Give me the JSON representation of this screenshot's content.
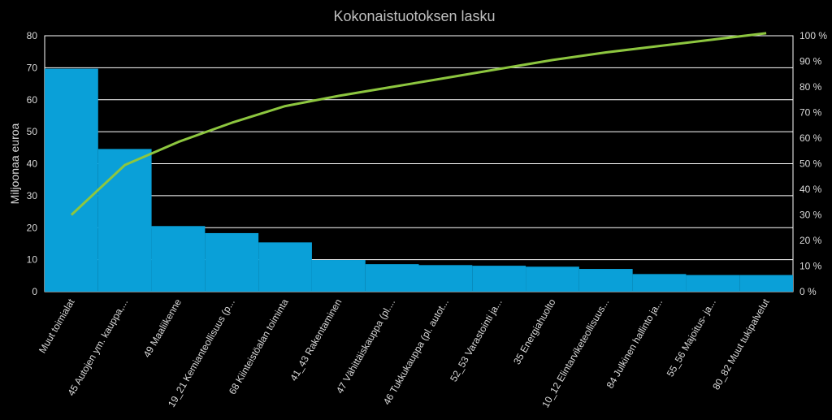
{
  "chart_data": {
    "type": "bar",
    "title": "Kokonaistuotoksen lasku",
    "ylabel": "Miljoonaa euroa",
    "ylim": [
      0,
      80
    ],
    "yticks": [
      "0",
      "10",
      "20",
      "30",
      "40",
      "50",
      "60",
      "70",
      "80"
    ],
    "y2lim": [
      0,
      100
    ],
    "y2ticks": [
      "0 %",
      "10 %",
      "20 %",
      "30 %",
      "40 %",
      "50 %",
      "60 %",
      "70 %",
      "80 %",
      "90 %",
      "100 %"
    ],
    "grid": true,
    "categories": [
      "Muut toimialat",
      "45 Autojen ym. kauppa,...",
      "49 Maaliikenne",
      "19_21 Kemianteollisuus (p...",
      "68 Kiinteistöalan toiminta",
      "41_43 Rakentaminen",
      "47 Vähittäiskauppa (pl....",
      "46 Tukkukauppa (pl. autot...",
      "52_53 Varastointi ja...",
      "35 Energiahuolto",
      "10_12 Elintarviketeollisuus...",
      "84 Julkinen hallinto ja...",
      "55_56 Majoitus- ja...",
      "80_82 Muut tukipalvelut"
    ],
    "series": [
      {
        "axis": "left",
        "kind": "bar",
        "color": "#0aa0d8",
        "values": [
          69.7,
          44.6,
          20.5,
          18.3,
          15.4,
          9.9,
          8.6,
          8.3,
          8.1,
          7.8,
          7.1,
          5.5,
          5.2,
          5.2
        ]
      },
      {
        "axis": "right",
        "kind": "line",
        "color": "#8dc63f",
        "values": [
          30,
          49.5,
          58.5,
          66,
          72.5,
          76.5,
          80,
          83.5,
          87,
          90.5,
          93.5,
          96,
          98.5,
          101
        ]
      }
    ]
  }
}
